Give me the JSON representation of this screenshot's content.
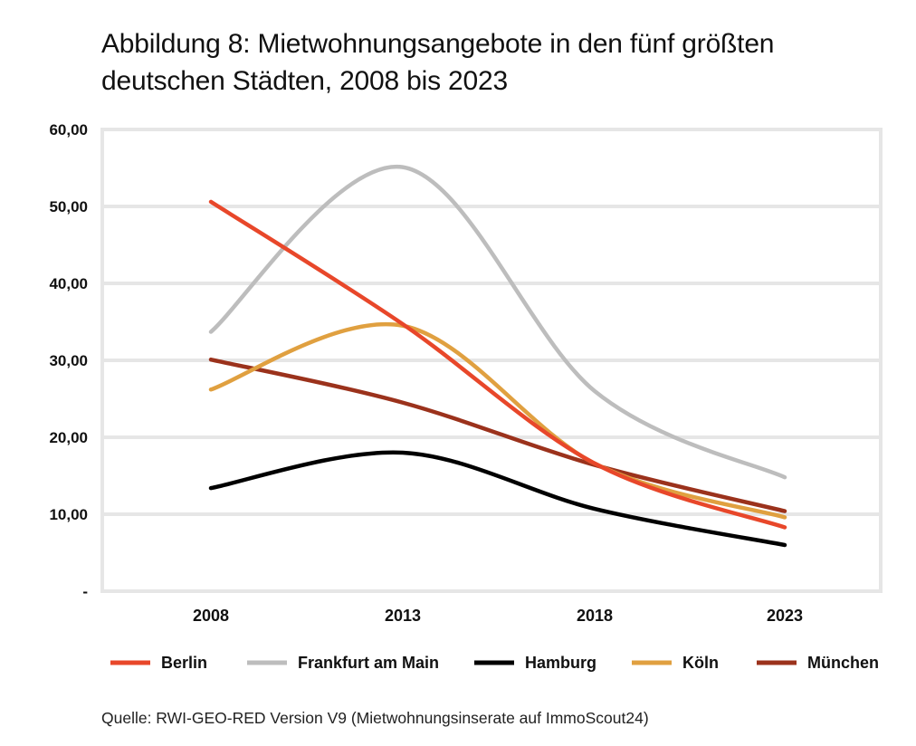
{
  "chart_data": {
    "type": "line",
    "title": "Abbildung 8: Mietwohnungsangebote in den fünf größten deutschen Städten, 2008 bis 2023",
    "source": "Quelle: RWI-GEO-RED Version V9 (Mietwohnungsinserate auf ImmoScout24)",
    "x": [
      "2008",
      "2013",
      "2018",
      "2023"
    ],
    "ylim": [
      0,
      60
    ],
    "yticks": [
      0,
      10,
      20,
      30,
      40,
      50,
      60
    ],
    "ytick_labels": [
      "-",
      "10,00",
      "20,00",
      "30,00",
      "40,00",
      "50,00",
      "60,00"
    ],
    "grid": true,
    "legend_position": "bottom",
    "series": [
      {
        "name": "Berlin",
        "color": "#e8472a",
        "values": [
          50.6,
          34.7,
          16.6,
          8.3
        ]
      },
      {
        "name": "Frankfurt am Main",
        "color": "#bdbdbd",
        "values": [
          33.7,
          55.1,
          26.0,
          14.8
        ]
      },
      {
        "name": "Hamburg",
        "color": "#000000",
        "values": [
          13.4,
          18.0,
          10.7,
          6.0
        ]
      },
      {
        "name": "Köln",
        "color": "#e0a040",
        "values": [
          26.2,
          34.5,
          16.6,
          9.6
        ]
      },
      {
        "name": "München",
        "color": "#9b321c",
        "values": [
          30.1,
          24.5,
          16.4,
          10.4
        ]
      }
    ]
  }
}
